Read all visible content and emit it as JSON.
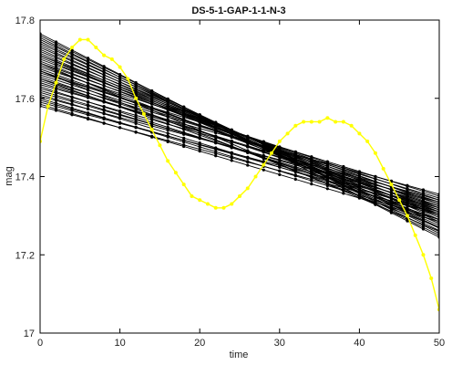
{
  "chart_data": {
    "type": "line",
    "title": "DS-5-1-GAP-1-1-N-3",
    "xlabel": "time",
    "ylabel": "mag",
    "xlim": [
      0,
      50
    ],
    "ylim": [
      17.0,
      17.8
    ],
    "xticks": [
      0,
      10,
      20,
      30,
      40,
      50
    ],
    "yticks": [
      17.0,
      17.2,
      17.4,
      17.6,
      17.8
    ],
    "xtick_labels": [
      "0",
      "10",
      "20",
      "30",
      "40",
      "50"
    ],
    "ytick_labels": [
      "17",
      "17.2",
      "17.4",
      "17.6",
      "17.8"
    ],
    "grid": false,
    "legend": "none",
    "colors": {
      "black_series": "#000000",
      "highlight_series": "#ffff00"
    },
    "x": [
      0,
      1,
      2,
      3,
      4,
      5,
      6,
      7,
      8,
      9,
      10,
      11,
      12,
      13,
      14,
      15,
      16,
      17,
      18,
      19,
      20,
      21,
      22,
      23,
      24,
      25,
      26,
      27,
      28,
      29,
      30,
      31,
      32,
      33,
      34,
      35,
      36,
      37,
      38,
      39,
      40,
      41,
      42,
      43,
      44,
      45,
      46,
      47,
      48,
      49,
      50
    ],
    "highlight_series": {
      "color": "#ffff00",
      "values": [
        17.49,
        17.58,
        17.64,
        17.7,
        17.73,
        17.75,
        17.75,
        17.73,
        17.71,
        17.7,
        17.68,
        17.65,
        17.6,
        17.56,
        17.52,
        17.48,
        17.44,
        17.41,
        17.38,
        17.35,
        17.34,
        17.33,
        17.32,
        17.32,
        17.33,
        17.35,
        17.37,
        17.4,
        17.43,
        17.46,
        17.49,
        17.51,
        17.53,
        17.54,
        17.54,
        17.54,
        17.55,
        17.54,
        17.54,
        17.53,
        17.51,
        17.49,
        17.46,
        17.42,
        17.38,
        17.34,
        17.3,
        17.25,
        17.2,
        17.14,
        17.06
      ]
    },
    "black_series": [
      {
        "start": 17.765,
        "end": 17.245
      },
      {
        "start": 17.76,
        "end": 17.255
      },
      {
        "start": 17.755,
        "end": 17.25
      },
      {
        "start": 17.75,
        "end": 17.27
      },
      {
        "start": 17.745,
        "end": 17.262
      },
      {
        "start": 17.74,
        "end": 17.28
      },
      {
        "start": 17.735,
        "end": 17.268
      },
      {
        "start": 17.73,
        "end": 17.29
      },
      {
        "start": 17.725,
        "end": 17.275
      },
      {
        "start": 17.72,
        "end": 17.3
      },
      {
        "start": 17.715,
        "end": 17.285
      },
      {
        "start": 17.71,
        "end": 17.31
      },
      {
        "start": 17.705,
        "end": 17.295
      },
      {
        "start": 17.7,
        "end": 17.32
      },
      {
        "start": 17.695,
        "end": 17.305
      },
      {
        "start": 17.69,
        "end": 17.33
      },
      {
        "start": 17.685,
        "end": 17.3
      },
      {
        "start": 17.68,
        "end": 17.34
      },
      {
        "start": 17.675,
        "end": 17.315
      },
      {
        "start": 17.67,
        "end": 17.325
      },
      {
        "start": 17.665,
        "end": 17.35
      },
      {
        "start": 17.66,
        "end": 17.335
      },
      {
        "start": 17.655,
        "end": 17.31
      },
      {
        "start": 17.65,
        "end": 17.345
      },
      {
        "start": 17.645,
        "end": 17.32
      },
      {
        "start": 17.64,
        "end": 17.33
      },
      {
        "start": 17.635,
        "end": 17.355
      },
      {
        "start": 17.63,
        "end": 17.305
      },
      {
        "start": 17.625,
        "end": 17.34
      },
      {
        "start": 17.62,
        "end": 17.315
      },
      {
        "start": 17.615,
        "end": 17.325
      },
      {
        "start": 17.61,
        "end": 17.3
      },
      {
        "start": 17.605,
        "end": 17.335
      },
      {
        "start": 17.6,
        "end": 17.29
      },
      {
        "start": 17.595,
        "end": 17.31
      },
      {
        "start": 17.59,
        "end": 17.32
      },
      {
        "start": 17.585,
        "end": 17.285
      },
      {
        "start": 17.58,
        "end": 17.305
      },
      {
        "start": 17.69,
        "end": 17.26
      },
      {
        "start": 17.71,
        "end": 17.28
      },
      {
        "start": 17.67,
        "end": 17.27
      },
      {
        "start": 17.65,
        "end": 17.29
      }
    ]
  }
}
